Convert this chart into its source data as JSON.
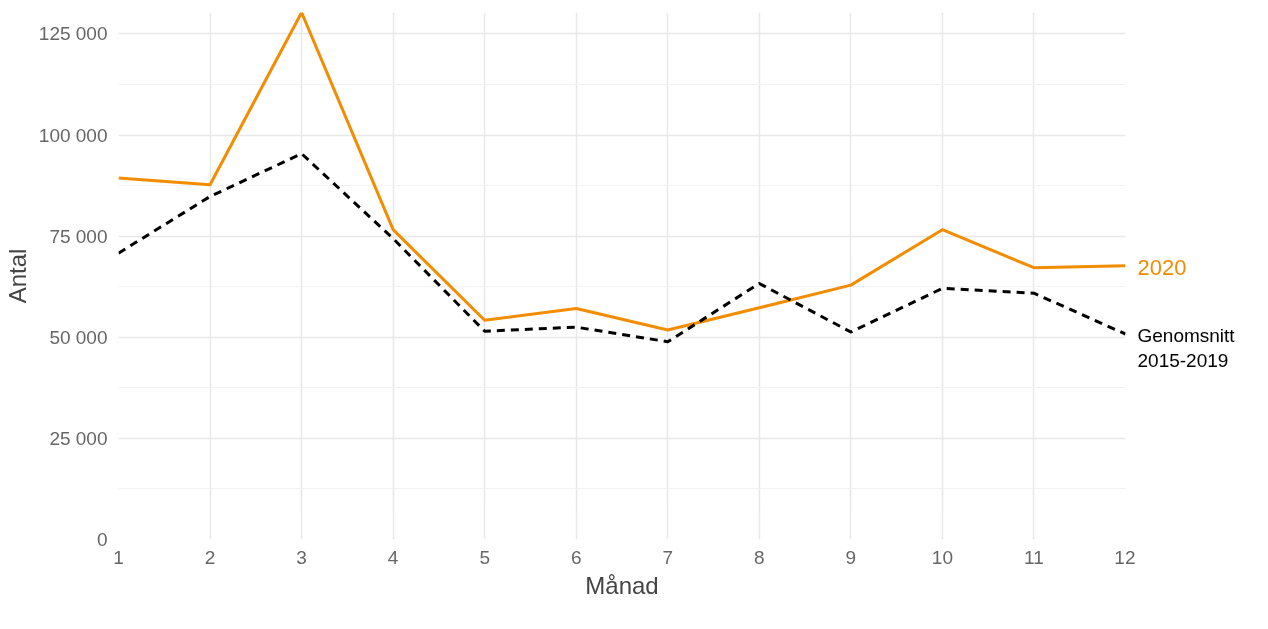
{
  "chart_data": {
    "type": "line",
    "xlabel": "Månad",
    "ylabel": "Antal",
    "x": [
      1,
      2,
      3,
      4,
      5,
      6,
      7,
      8,
      9,
      10,
      11,
      12
    ],
    "xlim": [
      1,
      12
    ],
    "xticks": [
      1,
      2,
      3,
      4,
      5,
      6,
      7,
      8,
      9,
      10,
      11,
      12
    ],
    "ylim": [
      0,
      130300
    ],
    "yticks": [
      {
        "value": 0,
        "label": "0"
      },
      {
        "value": 25000,
        "label": "25 000"
      },
      {
        "value": 50000,
        "label": "50 000"
      },
      {
        "value": 75000,
        "label": "75 000"
      },
      {
        "value": 100000,
        "label": "100 000"
      },
      {
        "value": 125000,
        "label": "125 000"
      }
    ],
    "grid": true,
    "legend": false,
    "series": [
      {
        "name": "2020",
        "color": "#f28c00",
        "line_style": "solid",
        "values": [
          89400,
          87700,
          130300,
          76600,
          54200,
          57100,
          51800,
          57300,
          62900,
          76600,
          67200,
          67700
        ]
      },
      {
        "name": "Genomsnitt\n2015-2019",
        "color": "#000000",
        "line_style": "dashed",
        "values": [
          70800,
          84800,
          95400,
          74400,
          51500,
          52500,
          48900,
          63300,
          51300,
          62100,
          60900,
          50800
        ]
      }
    ]
  }
}
